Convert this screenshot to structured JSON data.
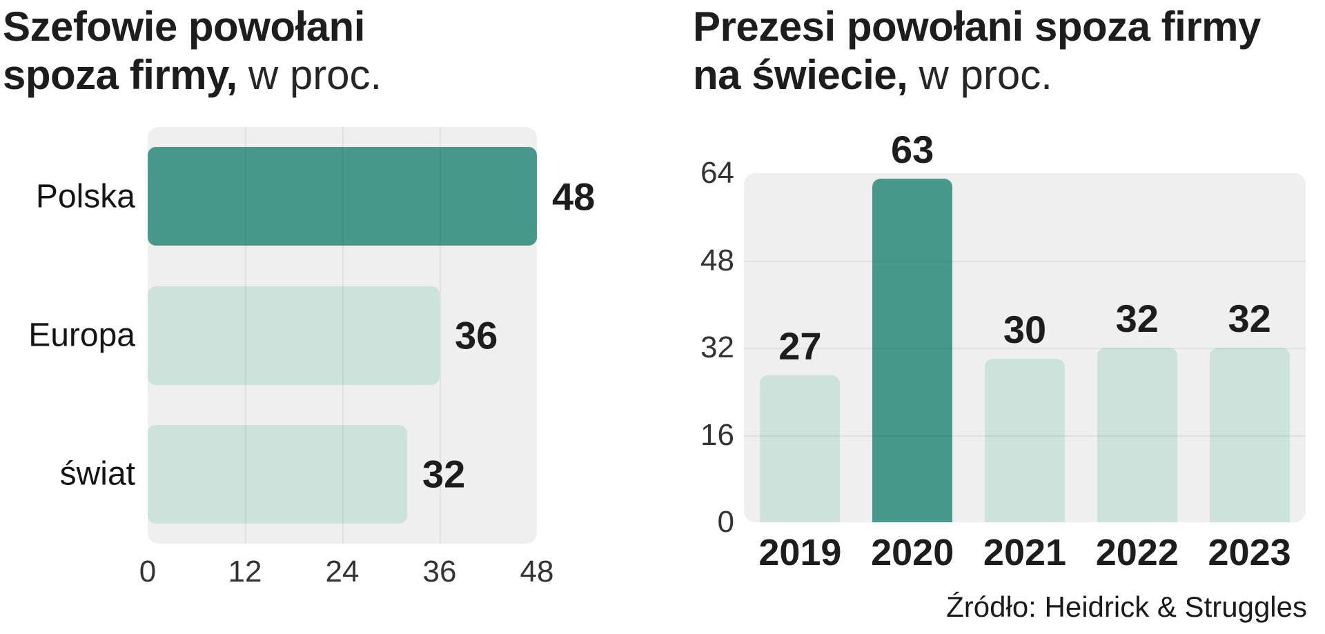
{
  "colors": {
    "highlight": "#479a8b",
    "muted": "#cbe3da",
    "plot_bg": "#efefef"
  },
  "source": "Źródło: Heidrick & Struggles",
  "chart_data": [
    {
      "type": "bar",
      "orientation": "horizontal",
      "title": "Szefowie powołani spoza firmy, w proc.",
      "title_lines": {
        "line1_bold": "Szefowie powołani",
        "line2_bold": "spoza firmy,",
        "suffix": "w proc."
      },
      "categories": [
        "Polska",
        "Europa",
        "świat"
      ],
      "values": [
        48,
        36,
        32
      ],
      "highlight_index": 0,
      "xticks": [
        0,
        12,
        24,
        36,
        48
      ],
      "xlim": [
        0,
        48
      ],
      "grid": true,
      "legend": false
    },
    {
      "type": "bar",
      "orientation": "vertical",
      "title": "Prezesi powołani spoza firmy na świecie, w proc.",
      "title_lines": {
        "line1_bold": "Prezesi powołani spoza firmy",
        "line2_bold": "na świecie,",
        "suffix": "w proc."
      },
      "categories": [
        "2019",
        "2020",
        "2021",
        "2022",
        "2023"
      ],
      "values": [
        27,
        63,
        30,
        32,
        32
      ],
      "highlight_index": 1,
      "yticks": [
        0,
        16,
        32,
        48,
        64
      ],
      "ylim": [
        0,
        64
      ],
      "grid": true,
      "legend": false
    }
  ]
}
